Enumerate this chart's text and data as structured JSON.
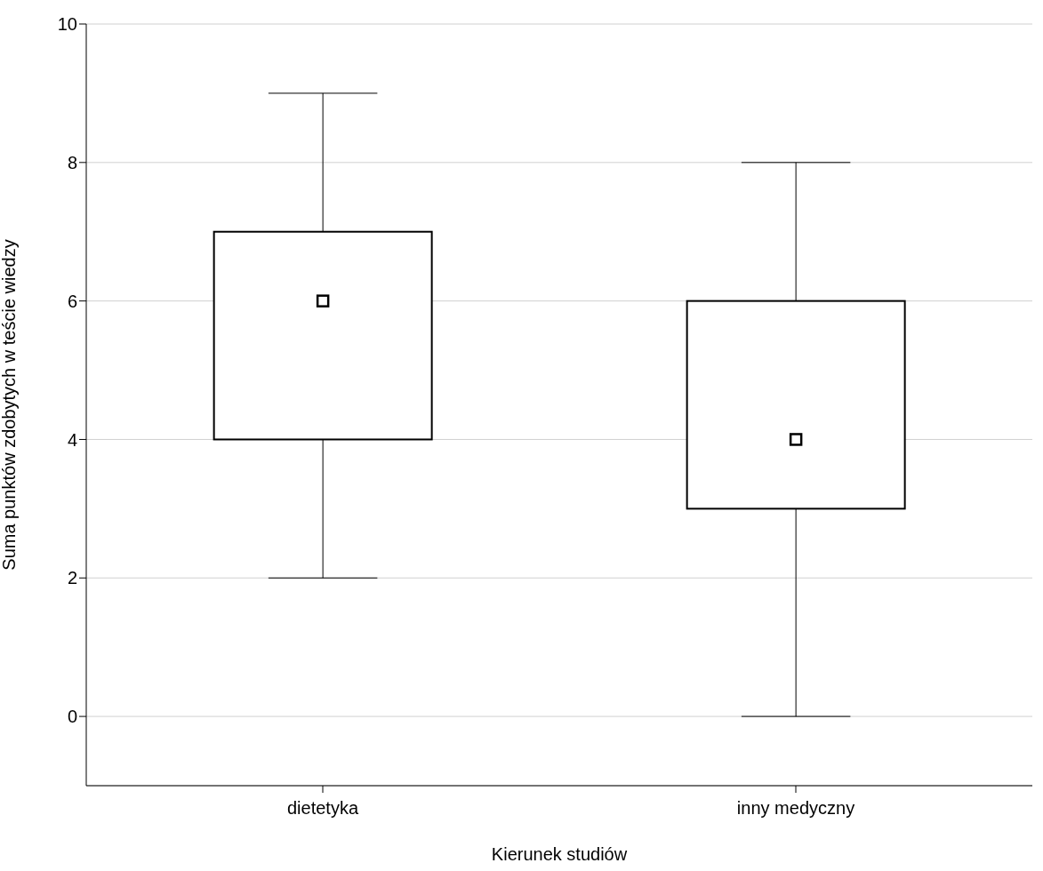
{
  "chart_data": {
    "type": "box",
    "xlabel": "Kierunek studiów",
    "ylabel": "Suma punktów zdobytych w teście wiedzy",
    "categories": [
      "dietetyka",
      "inny medyczny"
    ],
    "boxes": [
      {
        "low": 2,
        "q1": 4,
        "median": 6,
        "q3": 7,
        "high": 9
      },
      {
        "low": 0,
        "q1": 3,
        "median": 4,
        "q3": 6,
        "high": 8
      }
    ],
    "ylim": [
      -1,
      10
    ],
    "yticks": [
      0,
      2,
      4,
      6,
      8,
      10
    ],
    "grid": "y",
    "marker": "square"
  }
}
